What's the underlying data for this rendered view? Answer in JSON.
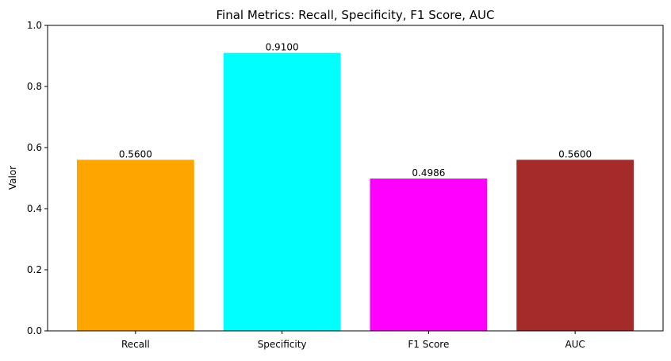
{
  "chart_data": {
    "type": "bar",
    "title": "Final Metrics: Recall, Specificity, F1 Score, AUC",
    "xlabel": "",
    "ylabel": "Valor",
    "categories": [
      "Recall",
      "Specificity",
      "F1 Score",
      "AUC"
    ],
    "values": [
      0.56,
      0.91,
      0.4986,
      0.56
    ],
    "value_labels": [
      "0.5600",
      "0.9100",
      "0.4986",
      "0.5600"
    ],
    "colors": [
      "#ffa500",
      "#00ffff",
      "#ff00ff",
      "#a52a2a"
    ],
    "ylim": [
      0,
      1
    ],
    "yticks": [
      "0.0",
      "0.2",
      "0.4",
      "0.6",
      "0.8",
      "1.0"
    ],
    "grid": false,
    "legend": "none"
  }
}
